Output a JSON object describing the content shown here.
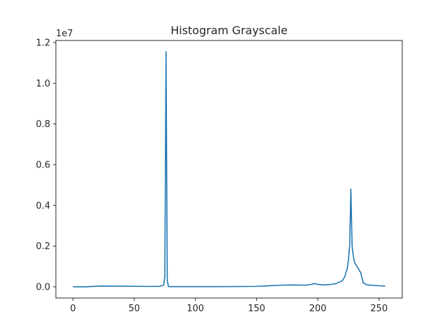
{
  "chart_data": {
    "type": "line",
    "title": "Histogram Grayscale",
    "xlabel": "",
    "ylabel": "",
    "y_offset_label": "1e7",
    "xlim": [
      -14,
      269
    ],
    "ylim": [
      -0.055,
      1.21
    ],
    "x_ticks": [
      0,
      50,
      100,
      150,
      200,
      250
    ],
    "x_tick_labels": [
      "0",
      "50",
      "100",
      "150",
      "200",
      "250"
    ],
    "y_ticks": [
      0.0,
      0.2,
      0.4,
      0.6,
      0.8,
      1.0,
      1.2
    ],
    "y_tick_labels": [
      "0.0",
      "0.2",
      "0.4",
      "0.6",
      "0.8",
      "1.0",
      "1.2"
    ],
    "grid": false,
    "series_color": "#1f77b4",
    "series": [
      {
        "x": [
          0,
          10,
          20,
          25,
          40,
          60,
          70,
          74,
          75,
          76,
          77,
          78,
          80,
          100,
          120,
          150,
          170,
          180,
          190,
          195,
          197,
          200,
          205,
          210,
          215,
          220,
          222,
          224,
          225,
          226,
          227,
          228,
          229,
          230,
          232,
          235,
          237,
          240,
          250,
          255
        ],
        "y": [
          0.0,
          0.0,
          0.003,
          0.004,
          0.003,
          0.002,
          0.002,
          0.008,
          0.05,
          1.155,
          0.03,
          0.001,
          0.001,
          0.001,
          0.001,
          0.002,
          0.008,
          0.009,
          0.008,
          0.012,
          0.016,
          0.012,
          0.009,
          0.011,
          0.016,
          0.03,
          0.05,
          0.09,
          0.13,
          0.2,
          0.48,
          0.2,
          0.15,
          0.12,
          0.1,
          0.07,
          0.02,
          0.01,
          0.005,
          0.004
        ]
      }
    ]
  }
}
